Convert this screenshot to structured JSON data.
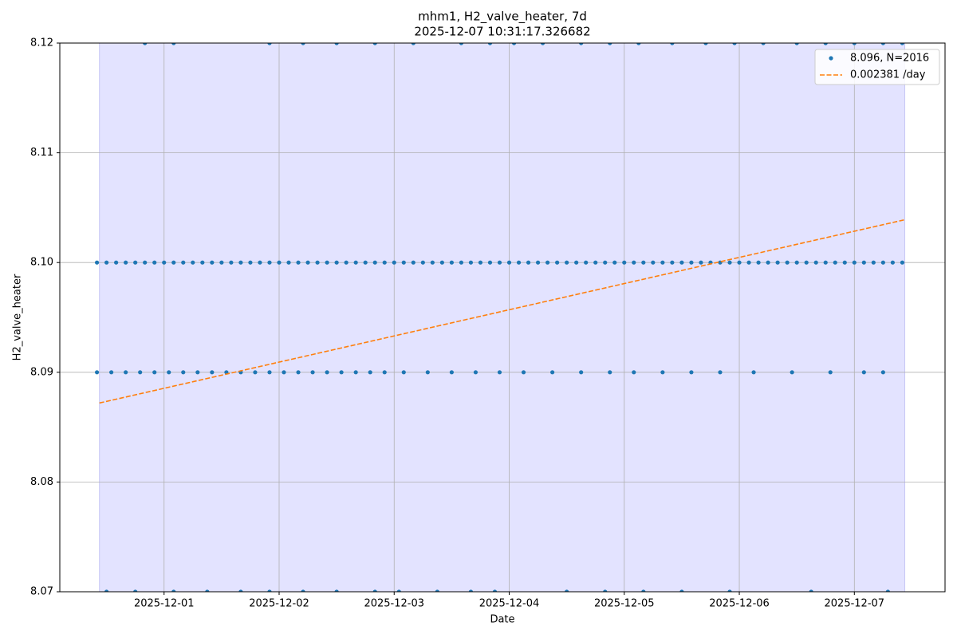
{
  "chart_data": {
    "type": "scatter",
    "title": "mhm1, H2_valve_heater, 7d",
    "subtitle": "2025-12-07 10:31:17.326682",
    "xlabel": "Date",
    "ylabel": "H2_valve_heater",
    "xlim": [
      "2025-11-30 02:15",
      "2025-12-07 18:55"
    ],
    "ylim": [
      8.07,
      8.12
    ],
    "xticks": [
      "2025-12-01",
      "2025-12-02",
      "2025-12-03",
      "2025-12-04",
      "2025-12-05",
      "2025-12-06",
      "2025-12-07"
    ],
    "yticks": [
      8.07,
      8.08,
      8.09,
      {
        "value": 8.1,
        "label": "8.10"
      },
      8.11,
      8.12
    ],
    "grid": true,
    "legend": "upper right",
    "span": {
      "x": [
        "2025-11-30 10:31",
        "2025-12-07 10:31"
      ],
      "color": "#e3e3ff"
    },
    "series": [
      {
        "name": "8.096, N=2016",
        "type": "scatter",
        "color": "#1f77b4",
        "x": [
          "2025-11-30 10:00",
          "2025-11-30 12:00",
          "2025-11-30 14:00",
          "2025-11-30 16:00",
          "2025-11-30 18:00",
          "2025-11-30 20:00",
          "2025-11-30 22:00",
          "2025-12-01 00:00",
          "2025-12-01 02:00",
          "2025-12-01 04:00",
          "2025-12-01 06:00",
          "2025-12-01 08:00",
          "2025-12-01 10:00",
          "2025-12-01 12:00",
          "2025-12-01 14:00",
          "2025-12-01 16:00",
          "2025-12-01 18:00",
          "2025-12-01 20:00",
          "2025-12-01 22:00",
          "2025-12-02 00:00",
          "2025-12-02 02:00",
          "2025-12-02 04:00",
          "2025-12-02 06:00",
          "2025-12-02 08:00",
          "2025-12-02 10:00",
          "2025-12-02 12:00",
          "2025-12-02 14:00",
          "2025-12-02 16:00",
          "2025-12-02 18:00",
          "2025-12-02 20:00",
          "2025-12-02 22:00",
          "2025-12-03 00:00",
          "2025-12-03 02:00",
          "2025-12-03 04:00",
          "2025-12-03 06:00",
          "2025-12-03 08:00",
          "2025-12-03 10:00",
          "2025-12-03 12:00",
          "2025-12-03 14:00",
          "2025-12-03 16:00",
          "2025-12-03 18:00",
          "2025-12-03 20:00",
          "2025-12-03 22:00",
          "2025-12-04 00:00",
          "2025-12-04 02:00",
          "2025-12-04 04:00",
          "2025-12-04 06:00",
          "2025-12-04 08:00",
          "2025-12-04 10:00",
          "2025-12-04 12:00",
          "2025-12-04 14:00",
          "2025-12-04 16:00",
          "2025-12-04 18:00",
          "2025-12-04 20:00",
          "2025-12-04 22:00",
          "2025-12-05 00:00",
          "2025-12-05 02:00",
          "2025-12-05 04:00",
          "2025-12-05 06:00",
          "2025-12-05 08:00",
          "2025-12-05 10:00",
          "2025-12-05 12:00",
          "2025-12-05 14:00",
          "2025-12-05 16:00",
          "2025-12-05 18:00",
          "2025-12-05 20:00",
          "2025-12-05 22:00",
          "2025-12-06 00:00",
          "2025-12-06 02:00",
          "2025-12-06 04:00",
          "2025-12-06 06:00",
          "2025-12-06 08:00",
          "2025-12-06 10:00",
          "2025-12-06 12:00",
          "2025-12-06 14:00",
          "2025-12-06 16:00",
          "2025-12-06 18:00",
          "2025-12-06 20:00",
          "2025-12-06 22:00",
          "2025-12-07 00:00",
          "2025-12-07 02:00",
          "2025-12-07 04:00",
          "2025-12-07 06:00",
          "2025-12-07 08:00",
          "2025-12-07 10:00",
          "2025-11-30 10:00",
          "2025-11-30 13:00",
          "2025-11-30 16:00",
          "2025-11-30 19:00",
          "2025-11-30 22:00",
          "2025-12-01 01:00",
          "2025-12-01 04:00",
          "2025-12-01 07:00",
          "2025-12-01 10:00",
          "2025-12-01 13:00",
          "2025-12-01 16:00",
          "2025-12-01 19:00",
          "2025-12-01 22:00",
          "2025-12-02 01:00",
          "2025-12-02 04:00",
          "2025-12-02 07:00",
          "2025-12-02 10:00",
          "2025-12-02 13:00",
          "2025-12-02 16:00",
          "2025-12-02 19:00",
          "2025-12-02 22:00",
          "2025-12-03 02:00",
          "2025-12-03 07:00",
          "2025-12-03 12:00",
          "2025-12-03 17:00",
          "2025-12-03 22:00",
          "2025-12-04 03:00",
          "2025-12-04 09:00",
          "2025-12-04 15:00",
          "2025-12-04 21:00",
          "2025-12-05 02:00",
          "2025-12-05 08:00",
          "2025-12-05 14:00",
          "2025-12-05 20:00",
          "2025-12-06 03:00",
          "2025-12-06 11:00",
          "2025-12-06 19:00",
          "2025-12-07 02:00",
          "2025-12-07 06:00",
          "2025-11-30 12:00",
          "2025-11-30 18:00",
          "2025-12-01 02:00",
          "2025-12-01 09:00",
          "2025-12-01 16:00",
          "2025-12-01 22:00",
          "2025-12-02 05:00",
          "2025-12-02 12:00",
          "2025-12-02 20:00",
          "2025-12-03 01:00",
          "2025-12-03 09:00",
          "2025-12-03 16:00",
          "2025-12-03 21:00",
          "2025-12-04 12:00",
          "2025-12-04 20:00",
          "2025-12-05 04:00",
          "2025-12-05 12:00",
          "2025-12-05 22:00",
          "2025-12-06 15:00",
          "2025-12-07 07:00",
          "2025-11-30 20:00",
          "2025-12-01 02:00",
          "2025-12-01 22:00",
          "2025-12-02 05:00",
          "2025-12-02 12:00",
          "2025-12-02 20:00",
          "2025-12-03 04:00",
          "2025-12-03 14:00",
          "2025-12-03 20:00",
          "2025-12-04 01:00",
          "2025-12-04 07:00",
          "2025-12-04 15:00",
          "2025-12-04 21:00",
          "2025-12-05 03:00",
          "2025-12-05 10:00",
          "2025-12-05 17:00",
          "2025-12-05 23:00",
          "2025-12-06 05:00",
          "2025-12-06 12:00",
          "2025-12-06 18:00",
          "2025-12-07 00:00",
          "2025-12-07 06:00",
          "2025-12-07 10:00"
        ],
        "values": [
          8.1,
          8.1,
          8.1,
          8.1,
          8.1,
          8.1,
          8.1,
          8.1,
          8.1,
          8.1,
          8.1,
          8.1,
          8.1,
          8.1,
          8.1,
          8.1,
          8.1,
          8.1,
          8.1,
          8.1,
          8.1,
          8.1,
          8.1,
          8.1,
          8.1,
          8.1,
          8.1,
          8.1,
          8.1,
          8.1,
          8.1,
          8.1,
          8.1,
          8.1,
          8.1,
          8.1,
          8.1,
          8.1,
          8.1,
          8.1,
          8.1,
          8.1,
          8.1,
          8.1,
          8.1,
          8.1,
          8.1,
          8.1,
          8.1,
          8.1,
          8.1,
          8.1,
          8.1,
          8.1,
          8.1,
          8.1,
          8.1,
          8.1,
          8.1,
          8.1,
          8.1,
          8.1,
          8.1,
          8.1,
          8.1,
          8.1,
          8.1,
          8.1,
          8.1,
          8.1,
          8.1,
          8.1,
          8.1,
          8.1,
          8.1,
          8.1,
          8.1,
          8.1,
          8.1,
          8.1,
          8.1,
          8.1,
          8.1,
          8.1,
          8.1,
          8.09,
          8.09,
          8.09,
          8.09,
          8.09,
          8.09,
          8.09,
          8.09,
          8.09,
          8.09,
          8.09,
          8.09,
          8.09,
          8.09,
          8.09,
          8.09,
          8.09,
          8.09,
          8.09,
          8.09,
          8.09,
          8.09,
          8.09,
          8.09,
          8.09,
          8.09,
          8.09,
          8.09,
          8.09,
          8.09,
          8.09,
          8.09,
          8.09,
          8.09,
          8.09,
          8.09,
          8.09,
          8.09,
          8.09,
          8.07,
          8.07,
          8.07,
          8.07,
          8.07,
          8.07,
          8.07,
          8.07,
          8.07,
          8.07,
          8.07,
          8.07,
          8.07,
          8.07,
          8.07,
          8.07,
          8.07,
          8.07,
          8.07,
          8.07,
          8.12,
          8.12,
          8.12,
          8.12,
          8.12,
          8.12,
          8.12,
          8.12,
          8.12,
          8.12,
          8.12,
          8.12,
          8.12,
          8.12,
          8.12,
          8.12,
          8.12,
          8.12,
          8.12,
          8.12,
          8.12,
          8.12,
          8.12
        ]
      },
      {
        "name": "0.002381 /day",
        "type": "line",
        "style": "dashed",
        "color": "#ff7f0e",
        "x": [
          "2025-11-30 10:31",
          "2025-12-07 10:31"
        ],
        "values": [
          8.0872,
          8.1039
        ]
      }
    ]
  }
}
